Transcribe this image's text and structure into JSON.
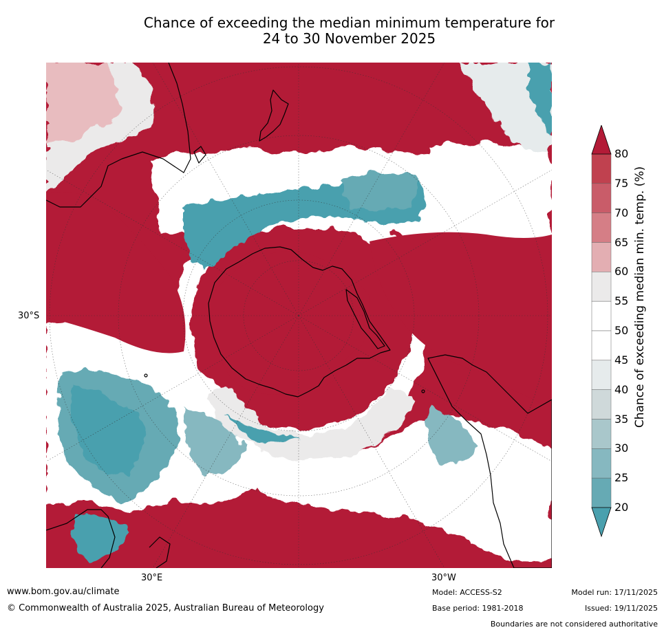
{
  "title": {
    "line1": "Chance of exceeding the median minimum temperature for",
    "line2": "24 to 30 November 2025"
  },
  "map": {
    "projection": "South polar stereographic",
    "axis_labels": {
      "left": "30°S",
      "bottom_left": "30°E",
      "bottom_right": "30°W"
    },
    "colors": {
      "deep_red": "#b31b37",
      "red_75": "#c0414f",
      "red_70": "#cf6b74",
      "red_65": "#dc949a",
      "red_60": "#e8bcbf",
      "grey_55": "#ebeaea",
      "white": "#ffffff",
      "light_blue_grey": "#e6ebec",
      "grey_blue_40": "#cfd9da",
      "blue_35": "#a9c7cb",
      "blue_30": "#86b8c0",
      "blue_25": "#66aab4",
      "teal_20": "#4aa0ae",
      "coast": "#000000"
    }
  },
  "colorbar": {
    "label": "Chance of exceeding median min. temp. (%)",
    "ticks": [
      "80",
      "75",
      "70",
      "65",
      "60",
      "55",
      "50",
      "45",
      "40",
      "35",
      "30",
      "25",
      "20"
    ],
    "bin_colors": [
      "#c0414f",
      "#c95c69",
      "#d57e86",
      "#e3aeb2",
      "#ebeaea",
      "#ffffff",
      "#ffffff",
      "#e6ebec",
      "#cfd9da",
      "#a9c7cb",
      "#86b8c0",
      "#66aab4"
    ],
    "top_arrow_color": "#b31b37",
    "bottom_arrow_color": "#4aa0ae"
  },
  "footer": {
    "website": "www.bom.gov.au/climate",
    "copyright": "© Commonwealth of Australia 2025, Australian Bureau of Meteorology",
    "model": "Model: ACCESS-S2",
    "base_period": "Base period: 1981-2018",
    "model_run": "Model run: 17/11/2025",
    "issued": "Issued: 19/11/2025",
    "disclaimer": "Boundaries are not considered authoritative"
  }
}
